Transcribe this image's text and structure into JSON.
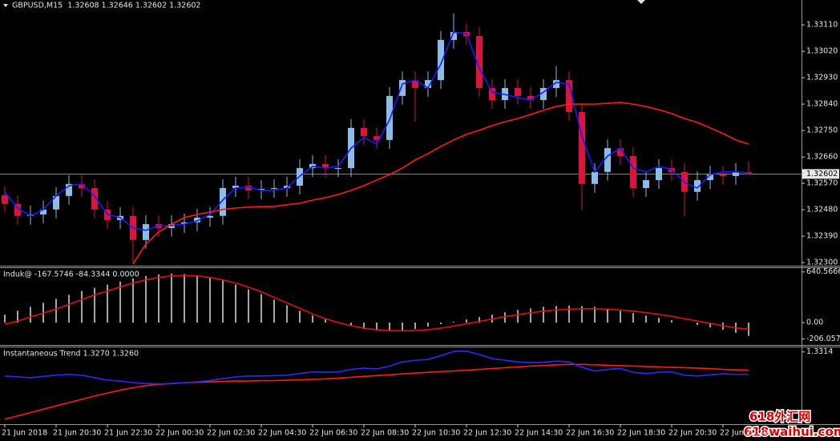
{
  "chart_data": [
    {
      "type": "candlestick",
      "title": "GBPUSD,M15  1.32608 1.32646 1.32602 1.32602",
      "categories": [
        "21 Jun 2018",
        null,
        null,
        null,
        "21 Jun 20:30",
        null,
        null,
        null,
        "21 Jun 22:30",
        null,
        null,
        null,
        "22 Jun 00:30",
        null,
        null,
        null,
        "22 Jun 02:30",
        null,
        null,
        null,
        "22 Jun 04:30",
        null,
        null,
        null,
        "22 Jun 06:30",
        null,
        null,
        null,
        "22 Jun 08:30",
        null,
        null,
        null,
        "22 Jun 10:30",
        null,
        null,
        null,
        "22 Jun 12:30",
        null,
        null,
        null,
        "22 Jun 14:30",
        null,
        null,
        null,
        "22 Jun 16:30",
        null,
        null,
        null,
        "22 Jun 18:30",
        null,
        null,
        null,
        "22 Jun 20:30",
        null,
        null,
        null,
        "22 Jun 22:30",
        null,
        null
      ],
      "open": [
        1.3253,
        1.325,
        1.32459,
        1.32464,
        1.32481,
        1.32527,
        1.32568,
        1.32554,
        1.32481,
        1.32445,
        1.32459,
        1.32377,
        1.32431,
        1.32418,
        1.32431,
        1.32437,
        1.32453,
        1.32459,
        1.32554,
        1.32562,
        1.32546,
        1.32551,
        1.32554,
        1.32562,
        1.32622,
        1.32636,
        1.32622,
        1.32622,
        1.32759,
        1.32731,
        1.32718,
        1.32868,
        1.32922,
        1.32895,
        1.32922,
        1.33059,
        1.33086,
        1.33072,
        1.32895,
        1.32854,
        1.32895,
        1.32868,
        1.32854,
        1.32895,
        1.32922,
        1.32813,
        1.32568,
        1.32609,
        1.3269,
        1.32663,
        1.32554,
        1.32581,
        1.32622,
        1.32609,
        1.32541,
        1.32581,
        1.326,
        1.32595,
        1.32608
      ],
      "high": [
        1.3256,
        1.3253,
        1.32494,
        1.32511,
        1.32557,
        1.32598,
        1.32598,
        1.32584,
        1.32511,
        1.32489,
        1.32489,
        1.32461,
        1.32461,
        1.32461,
        1.32467,
        1.32483,
        1.32489,
        1.32584,
        1.32592,
        1.32592,
        1.32581,
        1.32584,
        1.32592,
        1.32652,
        1.32666,
        1.32666,
        1.32652,
        1.32789,
        1.32789,
        1.32761,
        1.32898,
        1.32952,
        1.32952,
        1.32952,
        1.33089,
        1.3315,
        1.33116,
        1.33102,
        1.32925,
        1.32925,
        1.32925,
        1.32898,
        1.32925,
        1.3297,
        1.32952,
        1.32843,
        1.32639,
        1.3272,
        1.3272,
        1.32693,
        1.32611,
        1.32652,
        1.32652,
        1.32639,
        1.32611,
        1.3263,
        1.3263,
        1.32639,
        1.32646
      ],
      "low": [
        1.3247,
        1.32429,
        1.32429,
        1.32434,
        1.32451,
        1.32497,
        1.32524,
        1.32451,
        1.32415,
        1.32415,
        1.323,
        1.32347,
        1.32388,
        1.32388,
        1.32401,
        1.32407,
        1.32423,
        1.32429,
        1.32524,
        1.32516,
        1.32516,
        1.32521,
        1.32524,
        1.32532,
        1.32592,
        1.32592,
        1.32592,
        1.32592,
        1.32701,
        1.32688,
        1.32688,
        1.32838,
        1.3278,
        1.32865,
        1.32892,
        1.33029,
        1.33042,
        1.32865,
        1.32824,
        1.32824,
        1.32838,
        1.32824,
        1.32824,
        1.32865,
        1.32783,
        1.3248,
        1.32538,
        1.32579,
        1.32633,
        1.32524,
        1.32524,
        1.32551,
        1.32579,
        1.3246,
        1.32511,
        1.32551,
        1.32565,
        1.32565,
        1.32602
      ],
      "close": [
        1.325,
        1.32459,
        1.32464,
        1.32481,
        1.32527,
        1.32568,
        1.32554,
        1.32481,
        1.32445,
        1.32459,
        1.32377,
        1.32431,
        1.32418,
        1.32431,
        1.32437,
        1.32453,
        1.32459,
        1.32554,
        1.32562,
        1.32546,
        1.32551,
        1.32554,
        1.32562,
        1.32622,
        1.32636,
        1.32622,
        1.32622,
        1.32759,
        1.32731,
        1.32718,
        1.32868,
        1.32922,
        1.32895,
        1.32922,
        1.33059,
        1.33086,
        1.33072,
        1.32895,
        1.32854,
        1.32895,
        1.32868,
        1.32854,
        1.32895,
        1.32922,
        1.32813,
        1.32568,
        1.32609,
        1.3269,
        1.32663,
        1.32554,
        1.32581,
        1.32622,
        1.32609,
        1.32541,
        1.32581,
        1.326,
        1.32595,
        1.32609,
        1.32602
      ],
      "up_color": "#8cbde6",
      "down_color": "#dc143c",
      "series": [
        {
          "color": "#1a1aff",
          "values": [
            1.32541,
            1.32486,
            1.32459,
            1.32481,
            1.32527,
            1.32562,
            1.32568,
            1.32527,
            1.32464,
            1.32453,
            1.32418,
            1.3241,
            1.32426,
            1.32426,
            1.32431,
            1.32442,
            1.32464,
            1.32513,
            1.32554,
            1.32557,
            1.32546,
            1.32546,
            1.32554,
            1.32595,
            1.32628,
            1.32622,
            1.32628,
            1.3269,
            1.32726,
            1.32704,
            1.32786,
            1.32909,
            1.32922,
            1.32895,
            1.32977,
            1.33086,
            1.3308,
            1.32963,
            1.32881,
            1.32873,
            1.32862,
            1.32854,
            1.32881,
            1.32914,
            1.32909,
            1.32731,
            1.32609,
            1.32663,
            1.3269,
            1.32622,
            1.32609,
            1.32628,
            1.32617,
            1.32573,
            1.32554,
            1.326,
            1.32609,
            1.32609,
            1.32606
          ]
        },
        {
          "color": "#ff1a1a",
          "values": [
            null,
            null,
            null,
            null,
            null,
            null,
            null,
            null,
            null,
            null,
            1.32295,
            1.32363,
            1.32404,
            1.32431,
            1.32453,
            1.32464,
            1.32472,
            1.32481,
            1.32486,
            1.32489,
            1.32491,
            1.32491,
            1.32497,
            1.32502,
            1.32513,
            1.32521,
            1.32532,
            1.32546,
            1.32562,
            1.32581,
            1.326,
            1.32622,
            1.3265,
            1.32671,
            1.32696,
            1.32718,
            1.32737,
            1.32751,
            1.32767,
            1.3278,
            1.32791,
            1.32805,
            1.32819,
            1.32832,
            1.3284,
            1.3284,
            1.3284,
            1.32843,
            1.32846,
            1.3284,
            1.32832,
            1.32821,
            1.32808,
            1.32791,
            1.32778,
            1.32759,
            1.3274,
            1.32718,
            1.32704
          ]
        }
      ],
      "ylim": [
        1.32292,
        1.33195
      ],
      "yticks": [
        {
          "value": 1.323,
          "label": "1.32300"
        },
        {
          "value": 1.3239,
          "label": "1.32390"
        },
        {
          "value": 1.3248,
          "label": "1.32480"
        },
        {
          "value": 1.3257,
          "label": "1.32570"
        },
        {
          "value": 1.3266,
          "label": "1.32660"
        },
        {
          "value": 1.3275,
          "label": "1.32750"
        },
        {
          "value": 1.3284,
          "label": "1.32840"
        },
        {
          "value": 1.3293,
          "label": "1.32930"
        },
        {
          "value": 1.3302,
          "label": "1.33020"
        },
        {
          "value": 1.3311,
          "label": "1.33110"
        }
      ],
      "last_price": 1.32602
    },
    {
      "type": "histogram",
      "title": "Induk@ -167.5746 -84.3344 0.0000",
      "series": [
        {
          "style": "bar",
          "color": "#dddddd",
          "values": [
            100,
            150,
            200,
            250,
            300,
            350,
            400,
            440,
            480,
            520,
            560,
            590,
            610,
            620,
            615,
            600,
            570,
            530,
            480,
            420,
            360,
            290,
            220,
            150,
            90,
            40,
            0,
            -40,
            -80,
            -100,
            -110,
            -100,
            -80,
            -50,
            -20,
            10,
            40,
            70,
            100,
            130,
            160,
            180,
            200,
            210,
            215,
            210,
            200,
            180,
            150,
            120,
            90,
            60,
            30,
            0,
            -30,
            -60,
            -90,
            -130,
            -167.5746
          ]
        },
        {
          "style": "line",
          "color": "#e01010",
          "values": [
            -20,
            20,
            70,
            120,
            170,
            230,
            290,
            350,
            400,
            450,
            500,
            540,
            570,
            590,
            595,
            590,
            570,
            540,
            500,
            450,
            390,
            320,
            250,
            180,
            110,
            50,
            0,
            -40,
            -70,
            -90,
            -100,
            -105,
            -100,
            -90,
            -70,
            -45,
            -15,
            15,
            45,
            75,
            100,
            125,
            145,
            160,
            170,
            175,
            175,
            170,
            160,
            145,
            125,
            105,
            80,
            50,
            20,
            -10,
            -40,
            -65,
            -84.3344
          ]
        }
      ],
      "ylim": [
        -282.5,
        688.4
      ],
      "yticks": [
        -206.0579,
        {
          "value": 0,
          "label": "0.00"
        },
        640.5666
      ]
    },
    {
      "type": "line",
      "title": "Instantaneous Trend 1.3270 1.3260",
      "series": [
        {
          "color": "#ff1a1a",
          "values": [
            1.3152,
            1.316,
            1.3168,
            1.3176,
            1.3184,
            1.3192,
            1.32,
            1.3208,
            1.3215,
            1.3222,
            1.3228,
            1.3233,
            1.3236,
            1.3238,
            1.324,
            1.3241,
            1.3242,
            1.3243,
            1.3244,
            1.3244,
            1.3245,
            1.3245,
            1.3246,
            1.3247,
            1.3248,
            1.3249,
            1.3251,
            1.3253,
            1.3255,
            1.3257,
            1.3259,
            1.3261,
            1.3263,
            1.3265,
            1.3267,
            1.3268,
            1.327,
            1.3272,
            1.3274,
            1.3276,
            1.3278,
            1.328,
            1.3281,
            1.3283,
            1.3284,
            1.3284,
            1.3283,
            1.3282,
            1.3281,
            1.328,
            1.3279,
            1.3278,
            1.3277,
            1.3276,
            1.3275,
            1.3274,
            1.3272,
            1.3271,
            1.327
          ]
        },
        {
          "color": "#2a2aff",
          "values": [
            1.3256,
            1.3254,
            1.3252,
            1.3255,
            1.3258,
            1.326,
            1.3258,
            1.3252,
            1.3246,
            1.3244,
            1.324,
            1.3238,
            1.3237,
            1.3238,
            1.324,
            1.3242,
            1.3245,
            1.325,
            1.3254,
            1.3256,
            1.3256,
            1.3257,
            1.3258,
            1.3262,
            1.3266,
            1.3265,
            1.3266,
            1.3272,
            1.3275,
            1.3273,
            1.328,
            1.329,
            1.3294,
            1.3296,
            1.3305,
            1.3315,
            1.3316,
            1.3308,
            1.3298,
            1.3294,
            1.329,
            1.3288,
            1.3289,
            1.3292,
            1.329,
            1.3277,
            1.3268,
            1.3272,
            1.3274,
            1.3265,
            1.3262,
            1.3265,
            1.3266,
            1.3258,
            1.3256,
            1.3259,
            1.3261,
            1.326,
            1.326
          ]
        }
      ],
      "ylim": [
        1.314,
        1.3327
      ],
      "yticks": [
        1.3314
      ]
    }
  ],
  "watermark": {
    "title": "618外汇网",
    "url": "618waihui.com"
  }
}
